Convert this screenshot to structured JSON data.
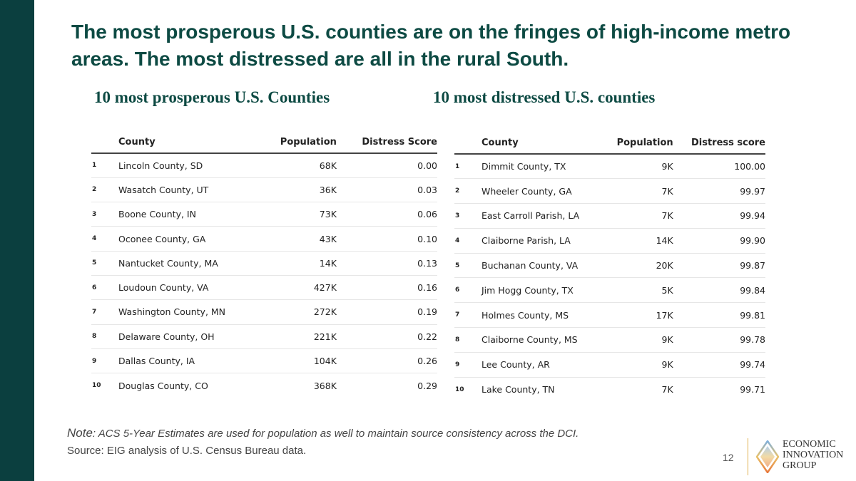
{
  "title": "The most prosperous U.S. counties are on the fringes of high-income metro areas. The most distressed are all in the rural South.",
  "left": {
    "heading": "10 most prosperous U.S. Counties",
    "columns": [
      "County",
      "Population",
      "Distress Score"
    ],
    "rows": [
      [
        "1",
        "Lincoln County, SD",
        "68K",
        "0.00"
      ],
      [
        "2",
        "Wasatch County, UT",
        "36K",
        "0.03"
      ],
      [
        "3",
        "Boone County, IN",
        "73K",
        "0.06"
      ],
      [
        "4",
        "Oconee County, GA",
        "43K",
        "0.10"
      ],
      [
        "5",
        "Nantucket County, MA",
        "14K",
        "0.13"
      ],
      [
        "6",
        "Loudoun County, VA",
        "427K",
        "0.16"
      ],
      [
        "7",
        "Washington County, MN",
        "272K",
        "0.19"
      ],
      [
        "8",
        "Delaware County, OH",
        "221K",
        "0.22"
      ],
      [
        "9",
        "Dallas County, IA",
        "104K",
        "0.26"
      ],
      [
        "10",
        "Douglas County, CO",
        "368K",
        "0.29"
      ]
    ]
  },
  "right": {
    "heading": "10 most distressed U.S. counties",
    "columns": [
      "County",
      "Population",
      "Distress score"
    ],
    "rows": [
      [
        "1",
        "Dimmit County, TX",
        "9K",
        "100.00"
      ],
      [
        "2",
        "Wheeler County, GA",
        "7K",
        "99.97"
      ],
      [
        "3",
        "East Carroll Parish, LA",
        "7K",
        "99.94"
      ],
      [
        "4",
        "Claiborne Parish, LA",
        "14K",
        "99.90"
      ],
      [
        "5",
        "Buchanan County, VA",
        "20K",
        "99.87"
      ],
      [
        "6",
        "Jim Hogg County, TX",
        "5K",
        "99.84"
      ],
      [
        "7",
        "Holmes County, MS",
        "17K",
        "99.81"
      ],
      [
        "8",
        "Claiborne County, MS",
        "9K",
        "99.78"
      ],
      [
        "9",
        "Lee County, AR",
        "9K",
        "99.74"
      ],
      [
        "10",
        "Lake County, TN",
        "7K",
        "99.71"
      ]
    ]
  },
  "note_label": "Note",
  "note_text": ": ACS 5-Year Estimates are used for population as well to maintain source consistency across the DCI.",
  "source": "Source: EIG analysis of U.S. Census Bureau data.",
  "page_number": "12",
  "logo": {
    "lines": [
      "ECONOMIC",
      "INNOVATION",
      "GROUP"
    ]
  },
  "colors": {
    "sidebar": "#0b3f3f",
    "title": "#0d4a43"
  }
}
